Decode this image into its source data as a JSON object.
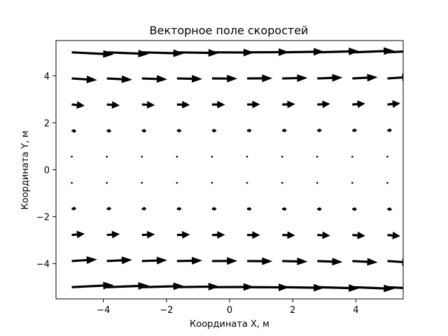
{
  "chart_data": {
    "type": "quiver",
    "title": "Векторное поле скоростей",
    "xlabel": "Координата X, м",
    "ylabel": "Координата Y, м",
    "xlim": [
      -5.5,
      5.5
    ],
    "ylim": [
      -5.5,
      5.5
    ],
    "xticks": [
      -4,
      -2,
      0,
      2,
      4
    ],
    "yticks": [
      -4,
      -2,
      0,
      2,
      4
    ],
    "xtick_labels": [
      "−4",
      "−2",
      "0",
      "2",
      "4"
    ],
    "ytick_labels": [
      "−4",
      "−2",
      "0",
      "2",
      "4"
    ],
    "grid": false,
    "arrow_color": "#000000",
    "x": [
      -5.0,
      -3.889,
      -2.778,
      -1.667,
      -0.556,
      0.556,
      1.667,
      2.778,
      3.889,
      5.0
    ],
    "y": [
      -5.0,
      -3.889,
      -2.778,
      -1.667,
      -0.556,
      0.556,
      1.667,
      2.778,
      3.889,
      5.0
    ],
    "field": "u = y^2, v = 0.05·x·y (approx.)"
  }
}
